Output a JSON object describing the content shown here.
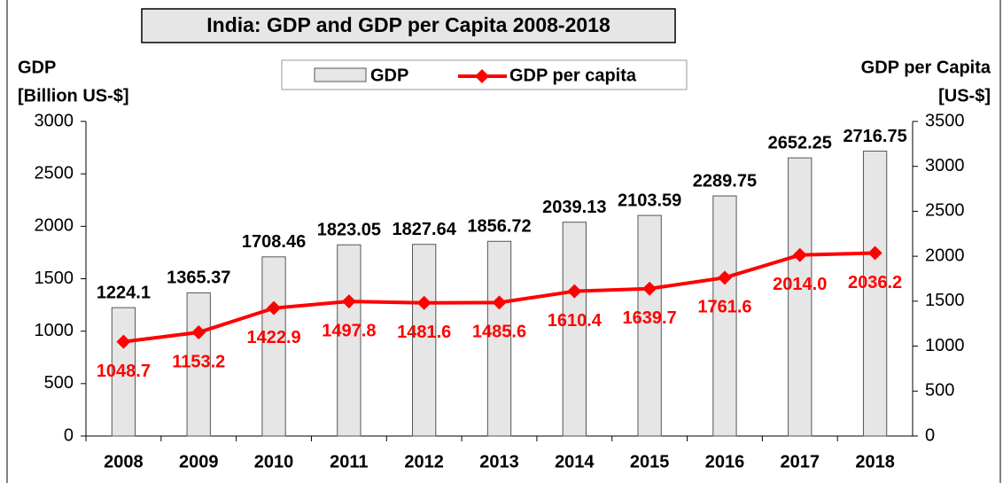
{
  "chart_data": {
    "type": "bar_line",
    "title": "India: GDP and GDP per Capita 2008-2018",
    "y_label": [
      "GDP",
      "[Billion US-$]"
    ],
    "y2_label": [
      "GDP per Capita",
      "[US-$]"
    ],
    "categories": [
      "2008",
      "2009",
      "2010",
      "2011",
      "2012",
      "2013",
      "2014",
      "2015",
      "2016",
      "2017",
      "2018"
    ],
    "series": [
      {
        "name": "GDP",
        "type": "bar",
        "color": "#e6e6e6",
        "values": [
          1224.1,
          1365.37,
          1708.46,
          1823.05,
          1827.64,
          1856.72,
          2039.13,
          2103.59,
          2289.75,
          2652.25,
          2716.75
        ]
      },
      {
        "name": "GDP per capita",
        "type": "line",
        "axis": "y2",
        "color": "#ff0000",
        "values": [
          1048.7,
          1153.2,
          1422.9,
          1497.8,
          1481.6,
          1485.6,
          1610.4,
          1639.7,
          1761.6,
          2014.0,
          2036.2
        ],
        "value_labels": [
          "1048.7",
          "1153.2",
          "1422.9",
          "1497.8",
          "1481.6",
          "1485.6",
          "1610.4",
          "1639.7",
          "1761.6",
          "2014.0",
          "2036.2"
        ]
      }
    ],
    "ylim": [
      0,
      3000
    ],
    "yticks": [
      0,
      500,
      1000,
      1500,
      2000,
      2500,
      3000
    ],
    "y2lim": [
      0,
      3500
    ],
    "y2ticks": [
      0,
      500,
      1000,
      1500,
      2000,
      2500,
      3000,
      3500
    ],
    "grid": false,
    "legend": "top"
  }
}
